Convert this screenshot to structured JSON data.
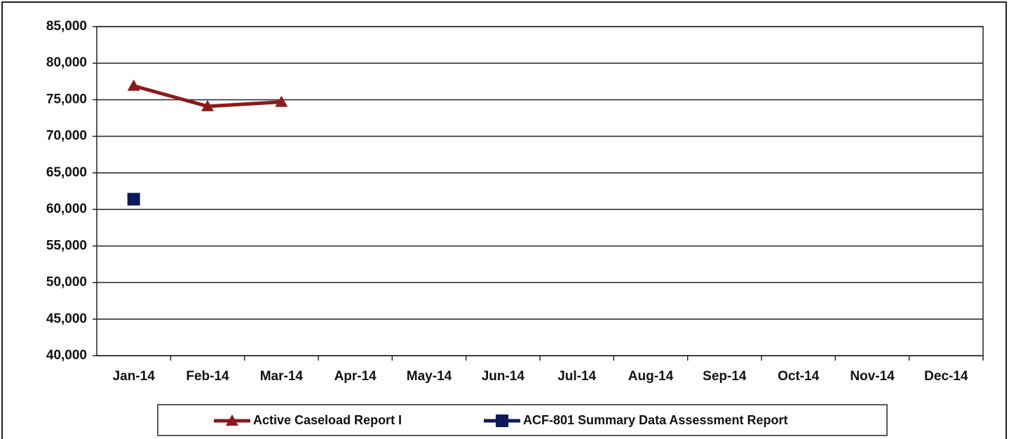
{
  "chart_data": {
    "type": "line",
    "categories": [
      "Jan-14",
      "Feb-14",
      "Mar-14",
      "Apr-14",
      "May-14",
      "Jun-14",
      "Jul-14",
      "Aug-14",
      "Sep-14",
      "Oct-14",
      "Nov-14",
      "Dec-14"
    ],
    "series": [
      {
        "name": "Active Caseload Report I",
        "color": "#8b1a1a",
        "marker": "triangle",
        "values": [
          76900,
          74100,
          74700,
          null,
          null,
          null,
          null,
          null,
          null,
          null,
          null,
          null
        ]
      },
      {
        "name": "ACF-801 Summary Data Assessment Report",
        "color": "#0d1a5c",
        "marker": "square",
        "values": [
          61400,
          null,
          null,
          null,
          null,
          null,
          null,
          null,
          null,
          null,
          null,
          null
        ]
      }
    ],
    "ylim": [
      40000,
      85000
    ],
    "yticks": [
      {
        "value": 40000,
        "label": "40,000"
      },
      {
        "value": 45000,
        "label": "45,000"
      },
      {
        "value": 50000,
        "label": "50,000"
      },
      {
        "value": 55000,
        "label": "55,000"
      },
      {
        "value": 60000,
        "label": "60,000"
      },
      {
        "value": 65000,
        "label": "65,000"
      },
      {
        "value": 70000,
        "label": "70,000"
      },
      {
        "value": 75000,
        "label": "75,000"
      },
      {
        "value": 80000,
        "label": "80,000"
      },
      {
        "value": 85000,
        "label": "85,000"
      }
    ],
    "grid": true,
    "legend": "bottom"
  }
}
